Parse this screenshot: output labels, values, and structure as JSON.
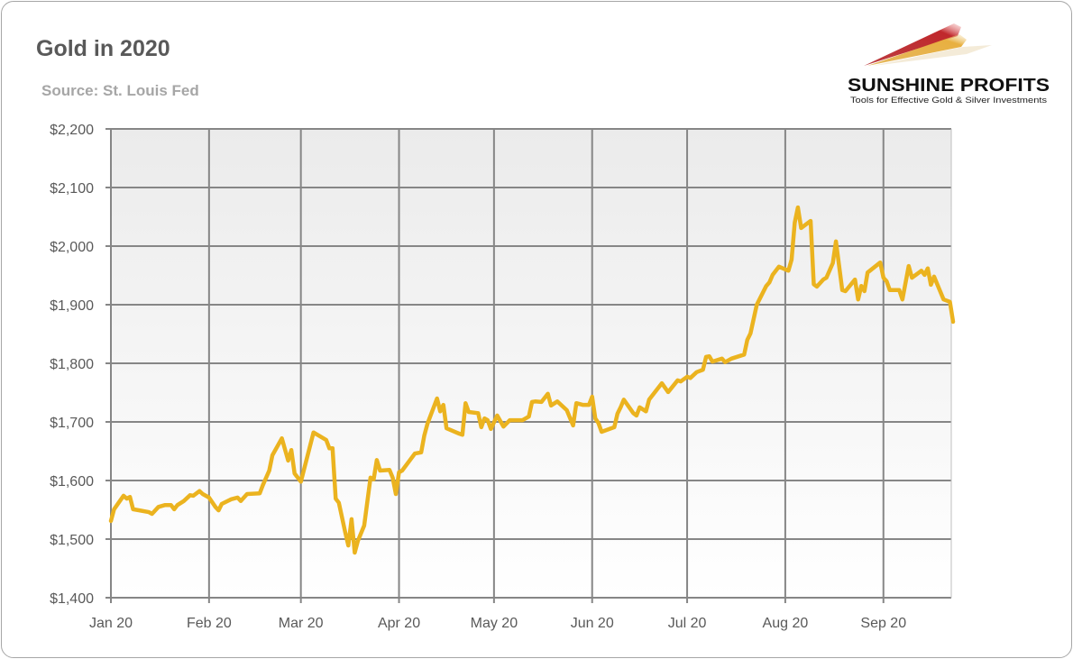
{
  "chart_data": {
    "type": "line",
    "title": "Gold in 2020",
    "subtitle": "Source: St. Louis Fed",
    "xlabel": "",
    "ylabel": "",
    "ylim": [
      1400,
      2200
    ],
    "xlim": [
      "2020-01-01",
      "2020-09-23"
    ],
    "yticks": [
      1400,
      1500,
      1600,
      1700,
      1800,
      1900,
      2000,
      2100,
      2200
    ],
    "ytick_labels": [
      "$1,400",
      "$1,500",
      "$1,600",
      "$1,700",
      "$1,800",
      "$1,900",
      "$2,000",
      "$2,100",
      "$2,200"
    ],
    "xticks": [
      "2020-01-01",
      "2020-02-01",
      "2020-03-01",
      "2020-04-01",
      "2020-05-01",
      "2020-06-01",
      "2020-07-01",
      "2020-08-01",
      "2020-09-01"
    ],
    "xtick_labels": [
      "Jan 20",
      "Feb 20",
      "Mar 20",
      "Apr 20",
      "May 20",
      "Jun 20",
      "Jul 20",
      "Aug 20",
      "Sep 20"
    ],
    "grid": true,
    "legend": "none",
    "line_color": "#EBB31F",
    "series": [
      {
        "points": [
          [
            "2020-01-01",
            1531
          ],
          [
            "2020-01-02",
            1551
          ],
          [
            "2020-01-05",
            1574
          ],
          [
            "2020-01-06",
            1569
          ],
          [
            "2020-01-07",
            1572
          ],
          [
            "2020-01-08",
            1551
          ],
          [
            "2020-01-10",
            1549
          ],
          [
            "2020-01-13",
            1546
          ],
          [
            "2020-01-14",
            1543
          ],
          [
            "2020-01-16",
            1555
          ],
          [
            "2020-01-18",
            1558
          ],
          [
            "2020-01-20",
            1558
          ],
          [
            "2020-01-21",
            1551
          ],
          [
            "2020-01-22",
            1558
          ],
          [
            "2020-01-24",
            1565
          ],
          [
            "2020-01-26",
            1575
          ],
          [
            "2020-01-27",
            1574
          ],
          [
            "2020-01-29",
            1582
          ],
          [
            "2020-01-30",
            1577
          ],
          [
            "2020-02-01",
            1571
          ],
          [
            "2020-02-03",
            1555
          ],
          [
            "2020-02-04",
            1549
          ],
          [
            "2020-02-05",
            1560
          ],
          [
            "2020-02-08",
            1568
          ],
          [
            "2020-02-10",
            1571
          ],
          [
            "2020-02-11",
            1565
          ],
          [
            "2020-02-13",
            1577
          ],
          [
            "2020-02-17",
            1578
          ],
          [
            "2020-02-18",
            1592
          ],
          [
            "2020-02-20",
            1617
          ],
          [
            "2020-02-21",
            1643
          ],
          [
            "2020-02-24",
            1672
          ],
          [
            "2020-02-26",
            1634
          ],
          [
            "2020-02-27",
            1652
          ],
          [
            "2020-02-28",
            1612
          ],
          [
            "2020-03-01",
            1598
          ],
          [
            "2020-03-05",
            1682
          ],
          [
            "2020-03-09",
            1669
          ],
          [
            "2020-03-10",
            1655
          ],
          [
            "2020-03-11",
            1655
          ],
          [
            "2020-03-12",
            1569
          ],
          [
            "2020-03-13",
            1562
          ],
          [
            "2020-03-15",
            1512
          ],
          [
            "2020-03-16",
            1489
          ],
          [
            "2020-03-17",
            1534
          ],
          [
            "2020-03-18",
            1477
          ],
          [
            "2020-03-19",
            1497
          ],
          [
            "2020-03-21",
            1523
          ],
          [
            "2020-03-23",
            1605
          ],
          [
            "2020-03-24",
            1602
          ],
          [
            "2020-03-25",
            1635
          ],
          [
            "2020-03-26",
            1617
          ],
          [
            "2020-03-29",
            1618
          ],
          [
            "2020-03-30",
            1605
          ],
          [
            "2020-03-31",
            1577
          ],
          [
            "2020-04-01",
            1614
          ],
          [
            "2020-04-02",
            1617
          ],
          [
            "2020-04-06",
            1646
          ],
          [
            "2020-04-08",
            1648
          ],
          [
            "2020-04-09",
            1677
          ],
          [
            "2020-04-10",
            1697
          ],
          [
            "2020-04-13",
            1740
          ],
          [
            "2020-04-14",
            1718
          ],
          [
            "2020-04-15",
            1729
          ],
          [
            "2020-04-16",
            1689
          ],
          [
            "2020-04-20",
            1680
          ],
          [
            "2020-04-21",
            1678
          ],
          [
            "2020-04-22",
            1732
          ],
          [
            "2020-04-23",
            1717
          ],
          [
            "2020-04-26",
            1715
          ],
          [
            "2020-04-27",
            1691
          ],
          [
            "2020-04-28",
            1706
          ],
          [
            "2020-04-29",
            1703
          ],
          [
            "2020-04-30",
            1688
          ],
          [
            "2020-05-02",
            1711
          ],
          [
            "2020-05-04",
            1692
          ],
          [
            "2020-05-06",
            1703
          ],
          [
            "2020-05-10",
            1703
          ],
          [
            "2020-05-12",
            1709
          ],
          [
            "2020-05-13",
            1734
          ],
          [
            "2020-05-14",
            1735
          ],
          [
            "2020-05-16",
            1734
          ],
          [
            "2020-05-18",
            1748
          ],
          [
            "2020-05-19",
            1728
          ],
          [
            "2020-05-21",
            1735
          ],
          [
            "2020-05-24",
            1720
          ],
          [
            "2020-05-26",
            1694
          ],
          [
            "2020-05-27",
            1732
          ],
          [
            "2020-05-29",
            1729
          ],
          [
            "2020-05-31",
            1729
          ],
          [
            "2020-06-01",
            1743
          ],
          [
            "2020-06-02",
            1706
          ],
          [
            "2020-06-03",
            1698
          ],
          [
            "2020-06-04",
            1683
          ],
          [
            "2020-06-07",
            1689
          ],
          [
            "2020-06-08",
            1691
          ],
          [
            "2020-06-09",
            1714
          ],
          [
            "2020-06-10",
            1725
          ],
          [
            "2020-06-11",
            1738
          ],
          [
            "2020-06-14",
            1715
          ],
          [
            "2020-06-15",
            1711
          ],
          [
            "2020-06-16",
            1725
          ],
          [
            "2020-06-18",
            1718
          ],
          [
            "2020-06-19",
            1738
          ],
          [
            "2020-06-23",
            1766
          ],
          [
            "2020-06-25",
            1751
          ],
          [
            "2020-06-28",
            1771
          ],
          [
            "2020-06-29",
            1769
          ],
          [
            "2020-07-01",
            1777
          ],
          [
            "2020-07-02",
            1775
          ],
          [
            "2020-07-04",
            1785
          ],
          [
            "2020-07-06",
            1789
          ],
          [
            "2020-07-07",
            1811
          ],
          [
            "2020-07-08",
            1812
          ],
          [
            "2020-07-09",
            1803
          ],
          [
            "2020-07-12",
            1808
          ],
          [
            "2020-07-13",
            1802
          ],
          [
            "2020-07-15",
            1808
          ],
          [
            "2020-07-19",
            1815
          ],
          [
            "2020-07-20",
            1840
          ],
          [
            "2020-07-21",
            1851
          ],
          [
            "2020-07-23",
            1900
          ],
          [
            "2020-07-26",
            1932
          ],
          [
            "2020-07-27",
            1938
          ],
          [
            "2020-07-28",
            1951
          ],
          [
            "2020-07-30",
            1965
          ],
          [
            "2020-08-02",
            1958
          ],
          [
            "2020-08-03",
            1977
          ],
          [
            "2020-08-04",
            2040
          ],
          [
            "2020-08-05",
            2066
          ],
          [
            "2020-08-06",
            2031
          ],
          [
            "2020-08-09",
            2043
          ],
          [
            "2020-08-10",
            1935
          ],
          [
            "2020-08-11",
            1931
          ],
          [
            "2020-08-13",
            1943
          ],
          [
            "2020-08-14",
            1946
          ],
          [
            "2020-08-16",
            1971
          ],
          [
            "2020-08-17",
            2008
          ],
          [
            "2020-08-19",
            1925
          ],
          [
            "2020-08-20",
            1923
          ],
          [
            "2020-08-23",
            1943
          ],
          [
            "2020-08-24",
            1909
          ],
          [
            "2020-08-25",
            1932
          ],
          [
            "2020-08-26",
            1923
          ],
          [
            "2020-08-27",
            1955
          ],
          [
            "2020-08-31",
            1972
          ],
          [
            "2020-09-01",
            1946
          ],
          [
            "2020-09-02",
            1940
          ],
          [
            "2020-09-03",
            1925
          ],
          [
            "2020-09-06",
            1925
          ],
          [
            "2020-09-07",
            1909
          ],
          [
            "2020-09-09",
            1966
          ],
          [
            "2020-09-10",
            1946
          ],
          [
            "2020-09-13",
            1958
          ],
          [
            "2020-09-14",
            1951
          ],
          [
            "2020-09-15",
            1962
          ],
          [
            "2020-09-16",
            1934
          ],
          [
            "2020-09-17",
            1948
          ],
          [
            "2020-09-20",
            1909
          ],
          [
            "2020-09-22",
            1905
          ],
          [
            "2020-09-23",
            1871
          ]
        ]
      }
    ]
  },
  "logo": {
    "name": "SUNSHINE PROFITS",
    "tagline": "Tools for Effective Gold & Silver Investments"
  }
}
